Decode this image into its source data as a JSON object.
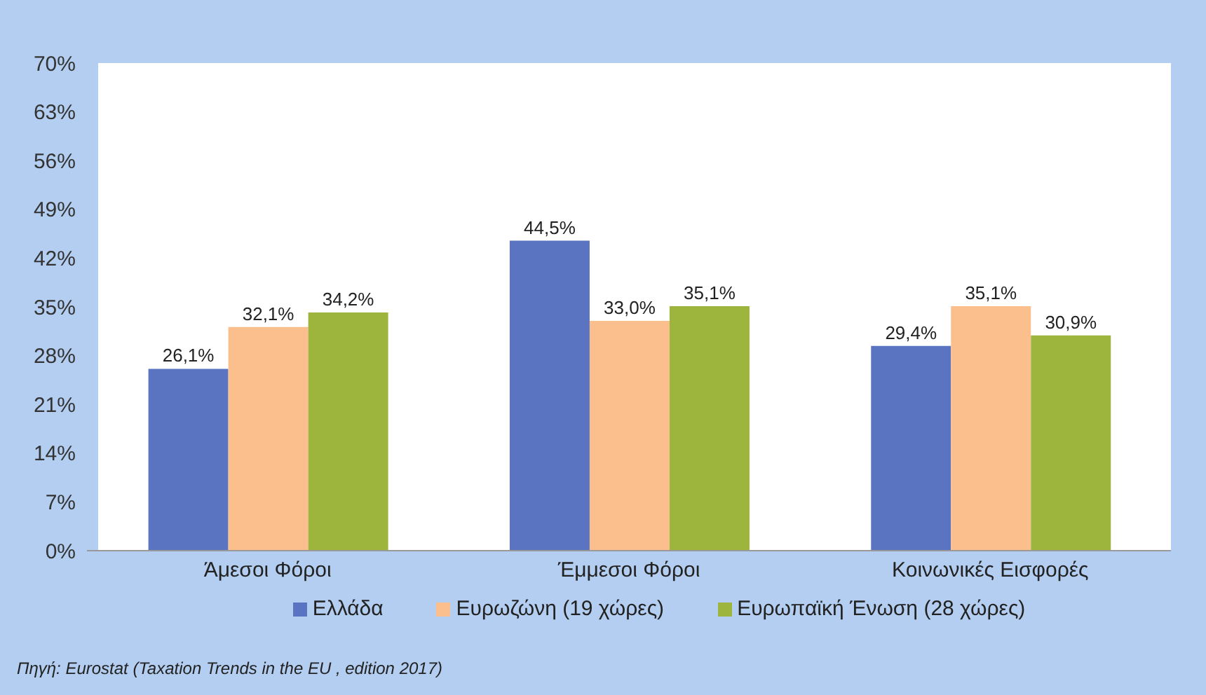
{
  "chart_data": {
    "type": "bar",
    "categories": [
      "Άμεσοι Φόροι",
      "Έμμεσοι Φόροι",
      "Κοινωνικές Εισφορές"
    ],
    "series": [
      {
        "name": "Ελλάδα",
        "color": "#5b74c2",
        "values": [
          26.1,
          44.5,
          29.4
        ],
        "value_labels": [
          "26,1%",
          "44,5%",
          "29,4%"
        ]
      },
      {
        "name": "Ευρωζώνη (19 χώρες)",
        "color": "#fbbf8e",
        "values": [
          32.1,
          33.0,
          35.1
        ],
        "value_labels": [
          "32,1%",
          "33,0%",
          "35,1%"
        ]
      },
      {
        "name": "Ευρωπαϊκή Ένωση (28 χώρες)",
        "color": "#9db53c",
        "values": [
          34.2,
          35.1,
          30.9
        ],
        "value_labels": [
          "34,2%",
          "35,1%",
          "30,9%"
        ]
      }
    ],
    "ylim": [
      0,
      70
    ],
    "yticks": [
      {
        "value": 0,
        "label": "0%"
      },
      {
        "value": 7,
        "label": "7%"
      },
      {
        "value": 14,
        "label": "14%"
      },
      {
        "value": 21,
        "label": "21%"
      },
      {
        "value": 28,
        "label": "28%"
      },
      {
        "value": 35,
        "label": "35%"
      },
      {
        "value": 42,
        "label": "42%"
      },
      {
        "value": 49,
        "label": "49%"
      },
      {
        "value": 56,
        "label": "56%"
      },
      {
        "value": 63,
        "label": "63%"
      },
      {
        "value": 70,
        "label": "70%"
      }
    ],
    "legend": "bottom",
    "annotations": [
      "Πηγή: Eurostat (Taxation Trends in the EU , edition 2017)"
    ]
  }
}
